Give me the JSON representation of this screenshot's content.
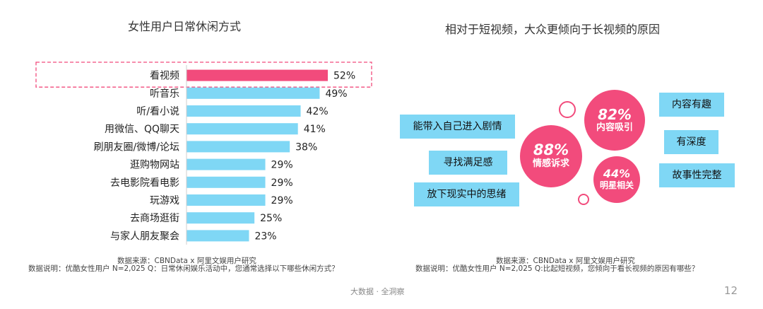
{
  "left_panel": {
    "title": "女性用户日常休闲方式",
    "source_line1": "数据来源：CBNData x 阿里文娱用户研究",
    "source_line2": "数据说明：优酷女性用户  N=2,025 Q：日常休闲娱乐活动中，您通常选择以下哪些休闲方式？"
  },
  "right_panel": {
    "title": "相对于短视频，大众更倾向于长视频的原因",
    "source_line1": "数据来源：CBNData x 阿里文娱用户研究",
    "source_line2": "数据说明：优酷女性用户  N=2,025  Q:比起短视频，您倾向于看长视频的原因有哪些？",
    "bubbles": [
      {
        "pct": "88%",
        "label": "情感诉求"
      },
      {
        "pct": "82%",
        "label": "内容吸引"
      },
      {
        "pct": "44%",
        "label": "明星相关"
      }
    ],
    "tags_left": [
      "能带入自己进入剧情",
      "寻找满足感",
      "放下现实中的思绪"
    ],
    "tags_right": [
      "内容有趣",
      "有深度",
      "故事性完整"
    ]
  },
  "footer": {
    "text": "大数据 · 全洞察",
    "page": "12"
  },
  "colors": {
    "highlight": "#f24b7c",
    "bar": "#7fd7f5",
    "dash": "#f24b7c"
  },
  "chart_data": {
    "type": "bar",
    "orientation": "horizontal",
    "title": "女性用户日常休闲方式",
    "categories": [
      "看视频",
      "听音乐",
      "听/看小说",
      "用微信、QQ聊天",
      "刷朋友圈/微博/论坛",
      "逛购物网站",
      "去电影院看电影",
      "玩游戏",
      "去商场逛街",
      "与家人朋友聚会"
    ],
    "values": [
      52,
      49,
      42,
      41,
      38,
      29,
      29,
      29,
      25,
      23
    ],
    "value_labels": [
      "52%",
      "49%",
      "42%",
      "41%",
      "38%",
      "29%",
      "29%",
      "29%",
      "25%",
      "23%"
    ],
    "unit": "%",
    "highlight_index": 0,
    "xlim": [
      0,
      52
    ],
    "grid": false,
    "legend": "none"
  }
}
